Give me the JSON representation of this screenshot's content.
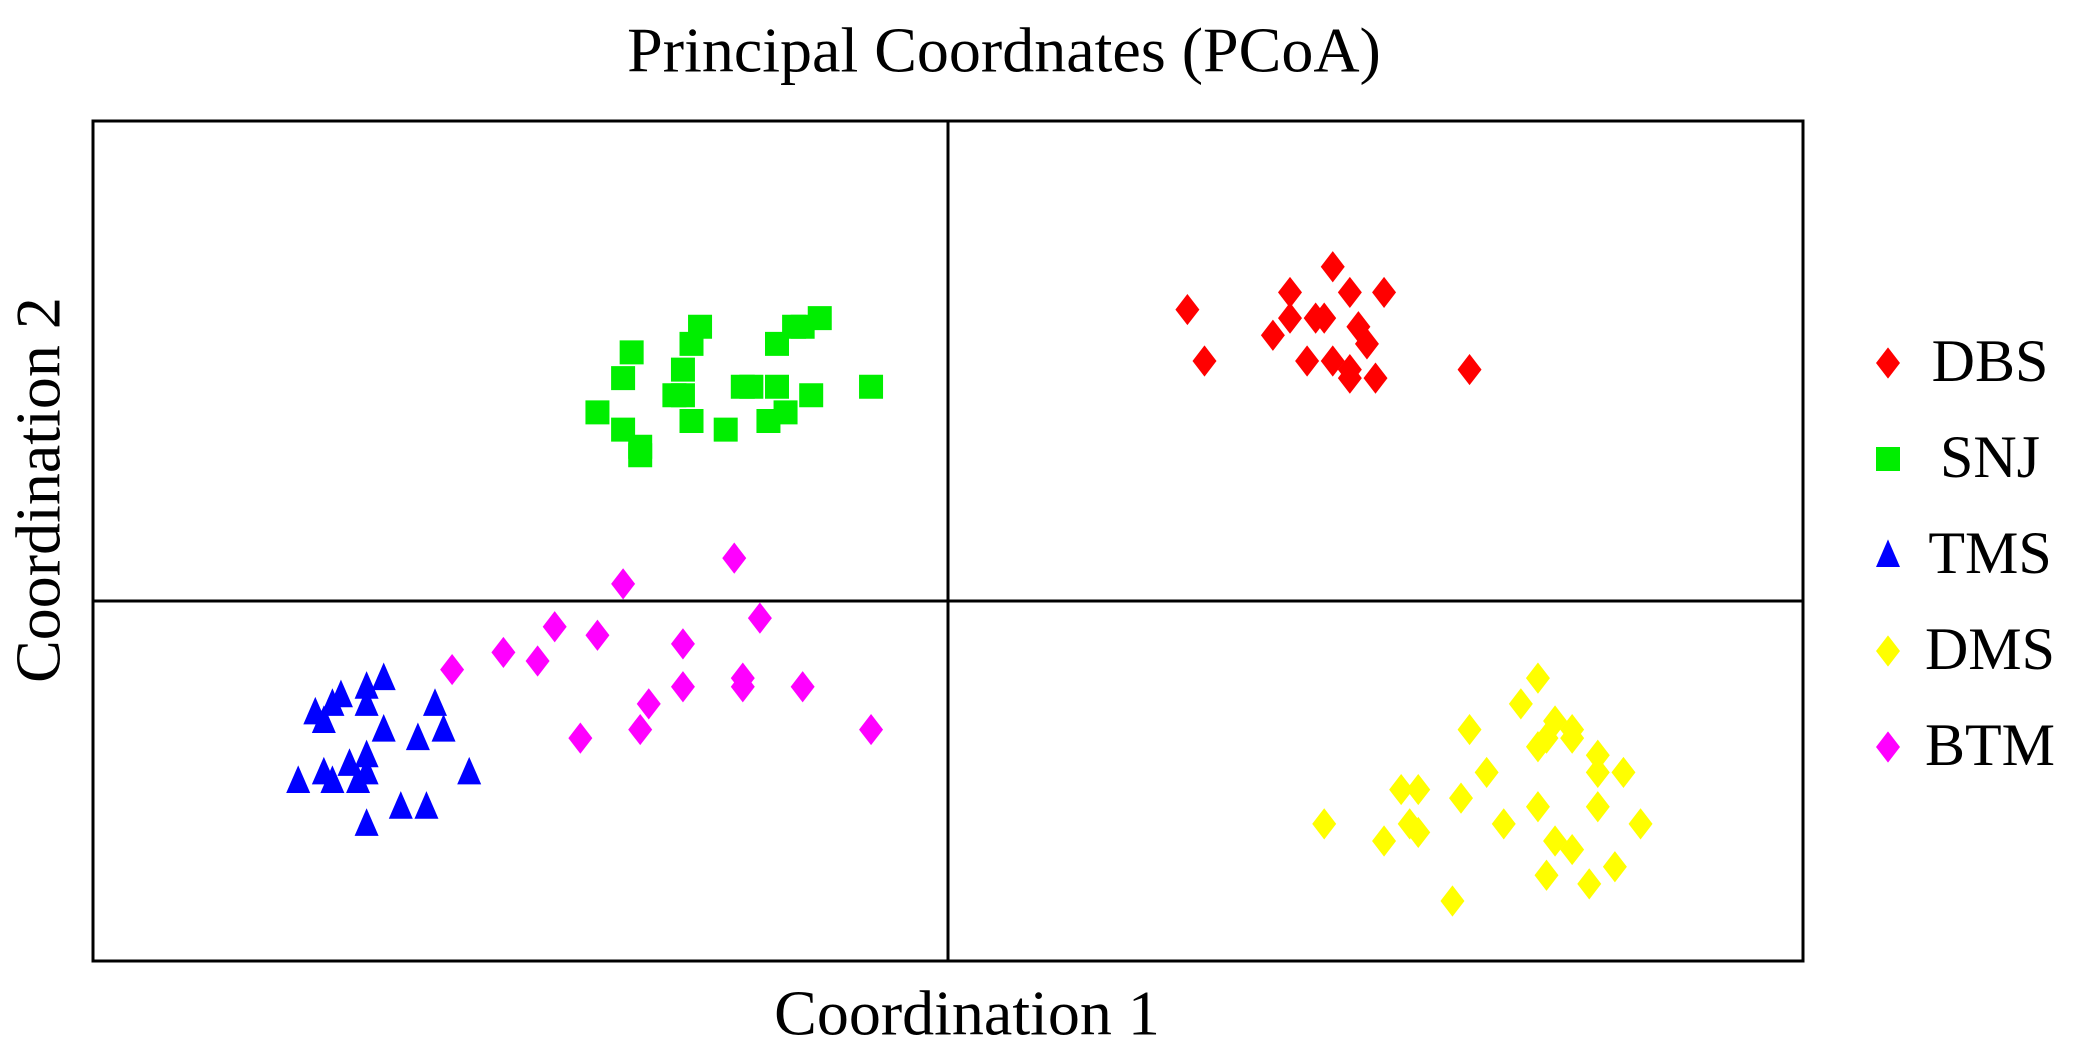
{
  "chart_data": {
    "type": "scatter",
    "title": "Principal Coordnates (PCoA)",
    "x_label": "Coordination 1",
    "y_label": "Coordination 2",
    "xlim": [
      -1,
      1
    ],
    "ylim": [
      -0.42,
      0.56
    ],
    "series": [
      {
        "name": "DBS",
        "color": "#ff0000",
        "marker": "diamond",
        "x": [
          0.28,
          0.3,
          0.4,
          0.45,
          0.47,
          0.51,
          0.38,
          0.4,
          0.43,
          0.44,
          0.42,
          0.45,
          0.48,
          0.49,
          0.47,
          0.5,
          0.61,
          0.47
        ],
        "values": [
          0.34,
          0.28,
          0.36,
          0.39,
          0.36,
          0.36,
          0.31,
          0.33,
          0.33,
          0.33,
          0.28,
          0.28,
          0.32,
          0.3,
          0.26,
          0.26,
          0.27,
          0.27
        ]
      },
      {
        "name": "SNJ",
        "color": "#00ee00",
        "marker": "square",
        "x": [
          -0.41,
          -0.38,
          -0.37,
          -0.38,
          -0.36,
          -0.36,
          -0.32,
          -0.31,
          -0.31,
          -0.3,
          -0.3,
          -0.29,
          -0.26,
          -0.24,
          -0.23,
          -0.21,
          -0.2,
          -0.2,
          -0.19,
          -0.18,
          -0.17,
          -0.16,
          -0.15,
          -0.09
        ],
        "values": [
          0.22,
          0.26,
          0.29,
          0.2,
          0.17,
          0.18,
          0.24,
          0.24,
          0.27,
          0.21,
          0.3,
          0.32,
          0.2,
          0.25,
          0.25,
          0.21,
          0.25,
          0.3,
          0.22,
          0.32,
          0.32,
          0.24,
          0.33,
          0.25
        ]
      },
      {
        "name": "TMS",
        "color": "#0000ff",
        "marker": "triangle",
        "x": [
          -0.74,
          -0.72,
          -0.71,
          -0.68,
          -0.68,
          -0.66,
          -0.6,
          -0.66,
          -0.62,
          -0.59,
          -0.76,
          -0.73,
          -0.7,
          -0.68,
          -0.68,
          -0.72,
          -0.64,
          -0.61,
          -0.68,
          -0.56,
          -0.73,
          -0.69
        ],
        "values": [
          -0.13,
          -0.12,
          -0.11,
          -0.1,
          -0.12,
          -0.09,
          -0.12,
          -0.15,
          -0.16,
          -0.15,
          -0.21,
          -0.2,
          -0.19,
          -0.18,
          -0.2,
          -0.21,
          -0.24,
          -0.24,
          -0.26,
          -0.2,
          -0.14,
          -0.21
        ]
      },
      {
        "name": "DMS",
        "color": "#ffff00",
        "marker": "diamond",
        "x": [
          0.44,
          0.51,
          0.53,
          0.54,
          0.55,
          0.55,
          0.59,
          0.6,
          0.61,
          0.63,
          0.65,
          0.67,
          0.69,
          0.69,
          0.7,
          0.69,
          0.7,
          0.71,
          0.73,
          0.73,
          0.71,
          0.73,
          0.75,
          0.76,
          0.76,
          0.76,
          0.78,
          0.79,
          0.81
        ],
        "values": [
          -0.26,
          -0.28,
          -0.22,
          -0.26,
          -0.27,
          -0.22,
          -0.35,
          -0.23,
          -0.15,
          -0.2,
          -0.26,
          -0.12,
          -0.09,
          -0.24,
          -0.32,
          -0.17,
          -0.16,
          -0.14,
          -0.15,
          -0.16,
          -0.28,
          -0.29,
          -0.33,
          -0.24,
          -0.2,
          -0.18,
          -0.31,
          -0.2,
          -0.26
        ]
      },
      {
        "name": "BTM",
        "color": "#ff00ff",
        "marker": "diamond",
        "x": [
          -0.58,
          -0.52,
          -0.48,
          -0.46,
          -0.41,
          -0.38,
          -0.43,
          -0.36,
          -0.35,
          -0.31,
          -0.31,
          -0.25,
          -0.24,
          -0.24,
          -0.22,
          -0.17,
          -0.09
        ],
        "values": [
          -0.08,
          -0.06,
          -0.07,
          -0.03,
          -0.04,
          0.02,
          -0.16,
          -0.15,
          -0.12,
          -0.05,
          -0.1,
          0.05,
          -0.09,
          -0.1,
          -0.02,
          -0.1,
          -0.15
        ]
      }
    ]
  }
}
